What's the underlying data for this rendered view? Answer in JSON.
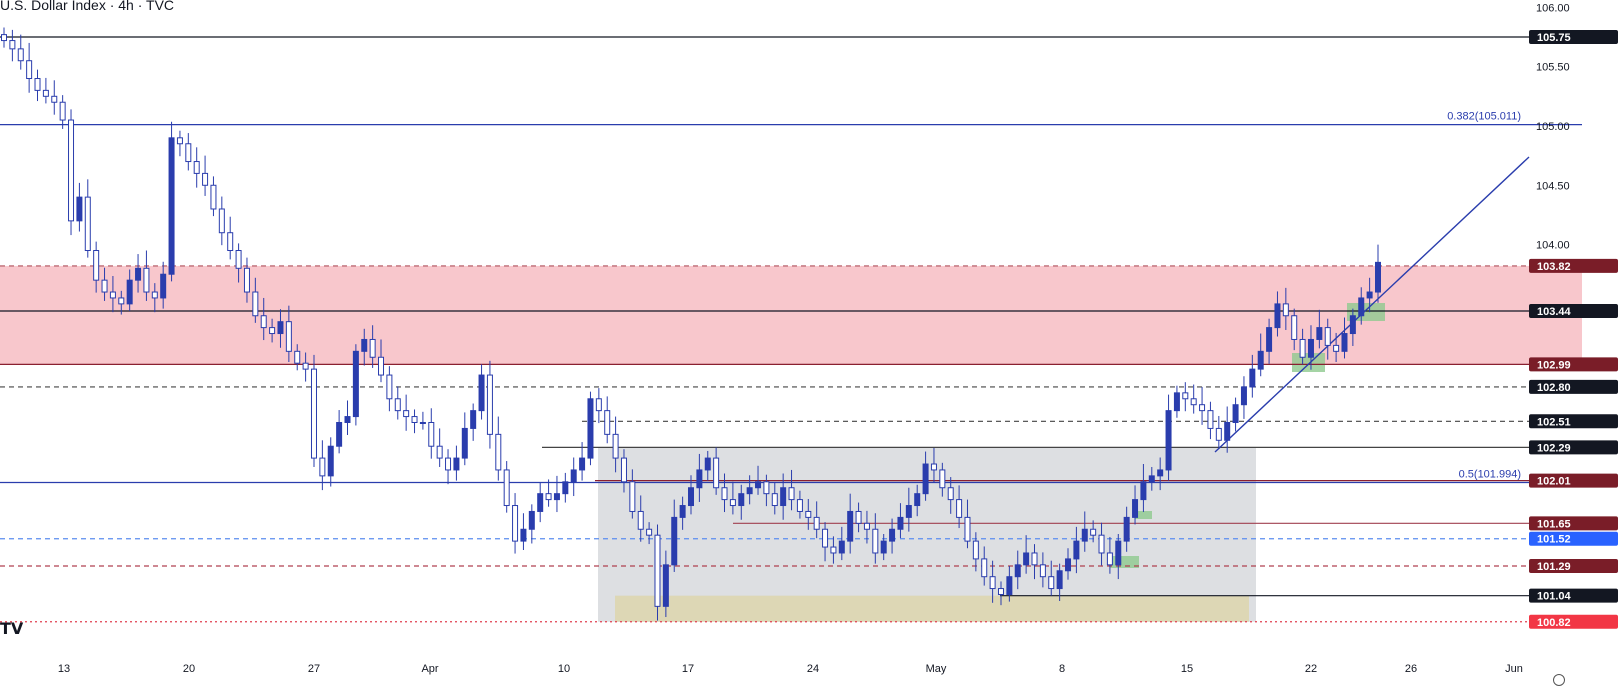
{
  "title": "U.S. Dollar Index · 4h · TVC",
  "logo": "TV",
  "chart_data": {
    "type": "candlestick",
    "symbol": "U.S. Dollar Index",
    "interval": "4h",
    "source": "TVC",
    "y_ticks": [
      "104.00",
      "104.50",
      "105.00",
      "105.50",
      "106.00"
    ],
    "x_ticks": [
      "13",
      "20",
      "27",
      "Apr",
      "10",
      "17",
      "24",
      "May",
      "8",
      "15",
      "22",
      "26",
      "Jun"
    ],
    "zones": [
      {
        "name": "resistance-zone",
        "from": 102.99,
        "to": 103.82,
        "color": "#f7c1c6"
      },
      {
        "name": "range-box",
        "from": 100.82,
        "to": 102.29,
        "color": "#d7d9dd"
      },
      {
        "name": "support-zone",
        "from": 100.82,
        "to": 101.04,
        "color": "#ddd6b0"
      }
    ],
    "levels": [
      {
        "value": 105.75,
        "label": "105.75",
        "style": "solid",
        "color": "#131722",
        "badge": "#131722"
      },
      {
        "value": 105.011,
        "label": "0.382(105.011)",
        "style": "solid",
        "color": "#2a3dad",
        "annotation": true
      },
      {
        "value": 103.82,
        "label": "103.82",
        "style": "dashed",
        "color": "#b0505c",
        "badge": "#7a1d28"
      },
      {
        "value": 103.44,
        "label": "103.44",
        "style": "solid",
        "color": "#131722",
        "badge": "#131722"
      },
      {
        "value": 102.99,
        "label": "102.99",
        "style": "solid",
        "color": "#8a2030",
        "badge": "#7a1d28"
      },
      {
        "value": 102.8,
        "label": "102.80",
        "style": "dashed",
        "color": "#444",
        "badge": "#131722"
      },
      {
        "value": 102.51,
        "label": "102.51",
        "style": "dashed",
        "color": "#444",
        "badge": "#131722"
      },
      {
        "value": 102.29,
        "label": "102.29",
        "style": "solid",
        "color": "#444",
        "badge": "#131722"
      },
      {
        "value": 101.994,
        "label": "0.5(101.994)",
        "style": "solid",
        "color": "#2a3dad",
        "annotation": true
      },
      {
        "value": 102.01,
        "label": "102.01",
        "style": "solid",
        "color": "#8a2030",
        "badge": "#7a1d28"
      },
      {
        "value": 101.65,
        "label": "101.65",
        "style": "solid",
        "color": "#a04050",
        "badge": "#7a1d28"
      },
      {
        "value": 101.52,
        "label": "101.52",
        "style": "dashed",
        "color": "#5b8def",
        "badge": "#2962ff"
      },
      {
        "value": 101.29,
        "label": "101.29",
        "style": "dashed",
        "color": "#b04050",
        "badge": "#7a1d28"
      },
      {
        "value": 101.04,
        "label": "101.04",
        "style": "solid",
        "color": "#131722",
        "badge": "#131722"
      },
      {
        "value": 100.82,
        "label": "100.82",
        "style": "dotted",
        "color": "#e04050",
        "badge": "#f23645"
      }
    ],
    "trendline": {
      "from": {
        "date": "May 16",
        "value": 102.08
      },
      "to": {
        "date": "Jun",
        "value": 104.73
      },
      "color": "#2a3dad"
    },
    "candle_color": "#2a3dad",
    "series": [
      {
        "name": "close",
        "values": [
          105.72,
          105.65,
          105.55,
          105.4,
          105.3,
          105.25,
          105.2,
          105.05,
          104.2,
          104.4,
          103.95,
          103.7,
          103.6,
          103.55,
          103.5,
          103.7,
          103.8,
          103.6,
          103.55,
          103.75,
          104.9,
          104.85,
          104.7,
          104.6,
          104.5,
          104.3,
          104.1,
          103.95,
          103.8,
          103.6,
          103.4,
          103.3,
          103.25,
          103.35,
          103.1,
          103.0,
          102.95,
          102.2,
          102.05,
          102.3,
          102.5,
          102.55,
          103.1,
          103.2,
          103.05,
          102.9,
          102.7,
          102.6,
          102.55,
          102.5,
          102.5,
          102.3,
          102.2,
          102.1,
          102.2,
          102.45,
          102.6,
          102.9,
          102.4,
          102.1,
          101.8,
          101.5,
          101.6,
          101.75,
          101.9,
          101.85,
          101.9,
          102.0,
          102.1,
          102.2,
          102.7,
          102.6,
          102.4,
          102.2,
          102.0,
          101.75,
          101.6,
          101.55,
          100.95,
          101.3,
          101.7,
          101.8,
          101.95,
          102.1,
          102.2,
          101.95,
          101.85,
          101.8,
          101.9,
          101.95,
          102.0,
          101.9,
          101.8,
          101.95,
          101.85,
          101.75,
          101.7,
          101.6,
          101.45,
          101.4,
          101.5,
          101.75,
          101.65,
          101.6,
          101.4,
          101.5,
          101.6,
          101.7,
          101.8,
          101.9,
          102.15,
          102.1,
          101.95,
          101.85,
          101.7,
          101.5,
          101.35,
          101.2,
          101.1,
          101.05,
          101.2,
          101.3,
          101.4,
          101.3,
          101.2,
          101.1,
          101.25,
          101.35,
          101.5,
          101.6,
          101.55,
          101.4,
          101.3,
          101.5,
          101.7,
          101.85,
          102.0,
          102.05,
          102.1,
          102.6,
          102.75,
          102.7,
          102.65,
          102.6,
          102.45,
          102.35,
          102.5,
          102.65,
          102.8,
          102.95,
          103.1,
          103.3,
          103.5,
          103.4,
          103.2,
          103.05,
          103.2,
          103.3,
          103.15,
          103.1,
          103.25,
          103.4,
          103.55,
          103.6,
          103.85
        ]
      }
    ]
  }
}
